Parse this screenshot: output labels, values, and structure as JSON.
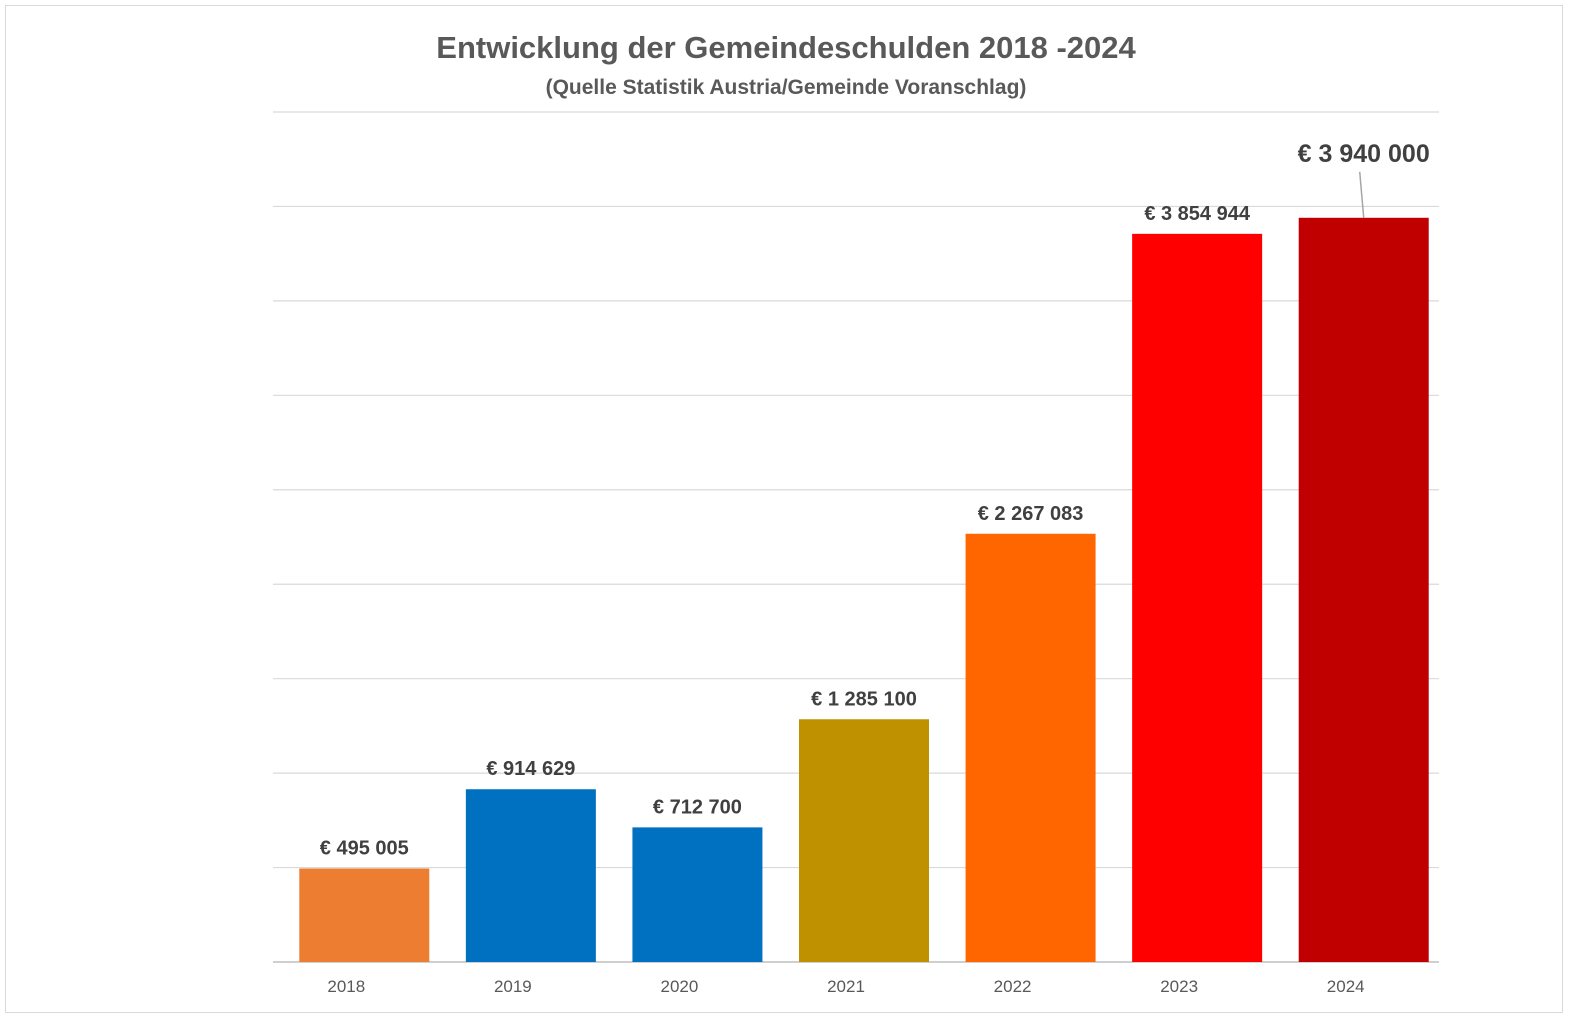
{
  "chart_data": {
    "type": "bar",
    "title": "Entwicklung der Gemeindeschulden 2018 -2024",
    "subtitle": "(Quelle Statistik Austria/Gemeinde Voranschlag)",
    "categories": [
      "2018",
      "2019",
      "2020",
      "2021",
      "2022",
      "2023",
      "2024"
    ],
    "values": [
      495005,
      914629,
      712700,
      1285100,
      2267083,
      3854944,
      3940000
    ],
    "data_labels": [
      "€ 495 005",
      "€ 914 629",
      "€ 712 700",
      "€ 1 285 100",
      "€ 2 267 083",
      "€ 3 854 944",
      "€ 3 940 000"
    ],
    "colors": [
      "#ED7D31",
      "#0070C0",
      "#0070C0",
      "#BF9000",
      "#FF6600",
      "#FF0000",
      "#C00000"
    ],
    "ylim": [
      0,
      4500000
    ],
    "grid_step": 500000,
    "grid": true,
    "legend": false
  }
}
